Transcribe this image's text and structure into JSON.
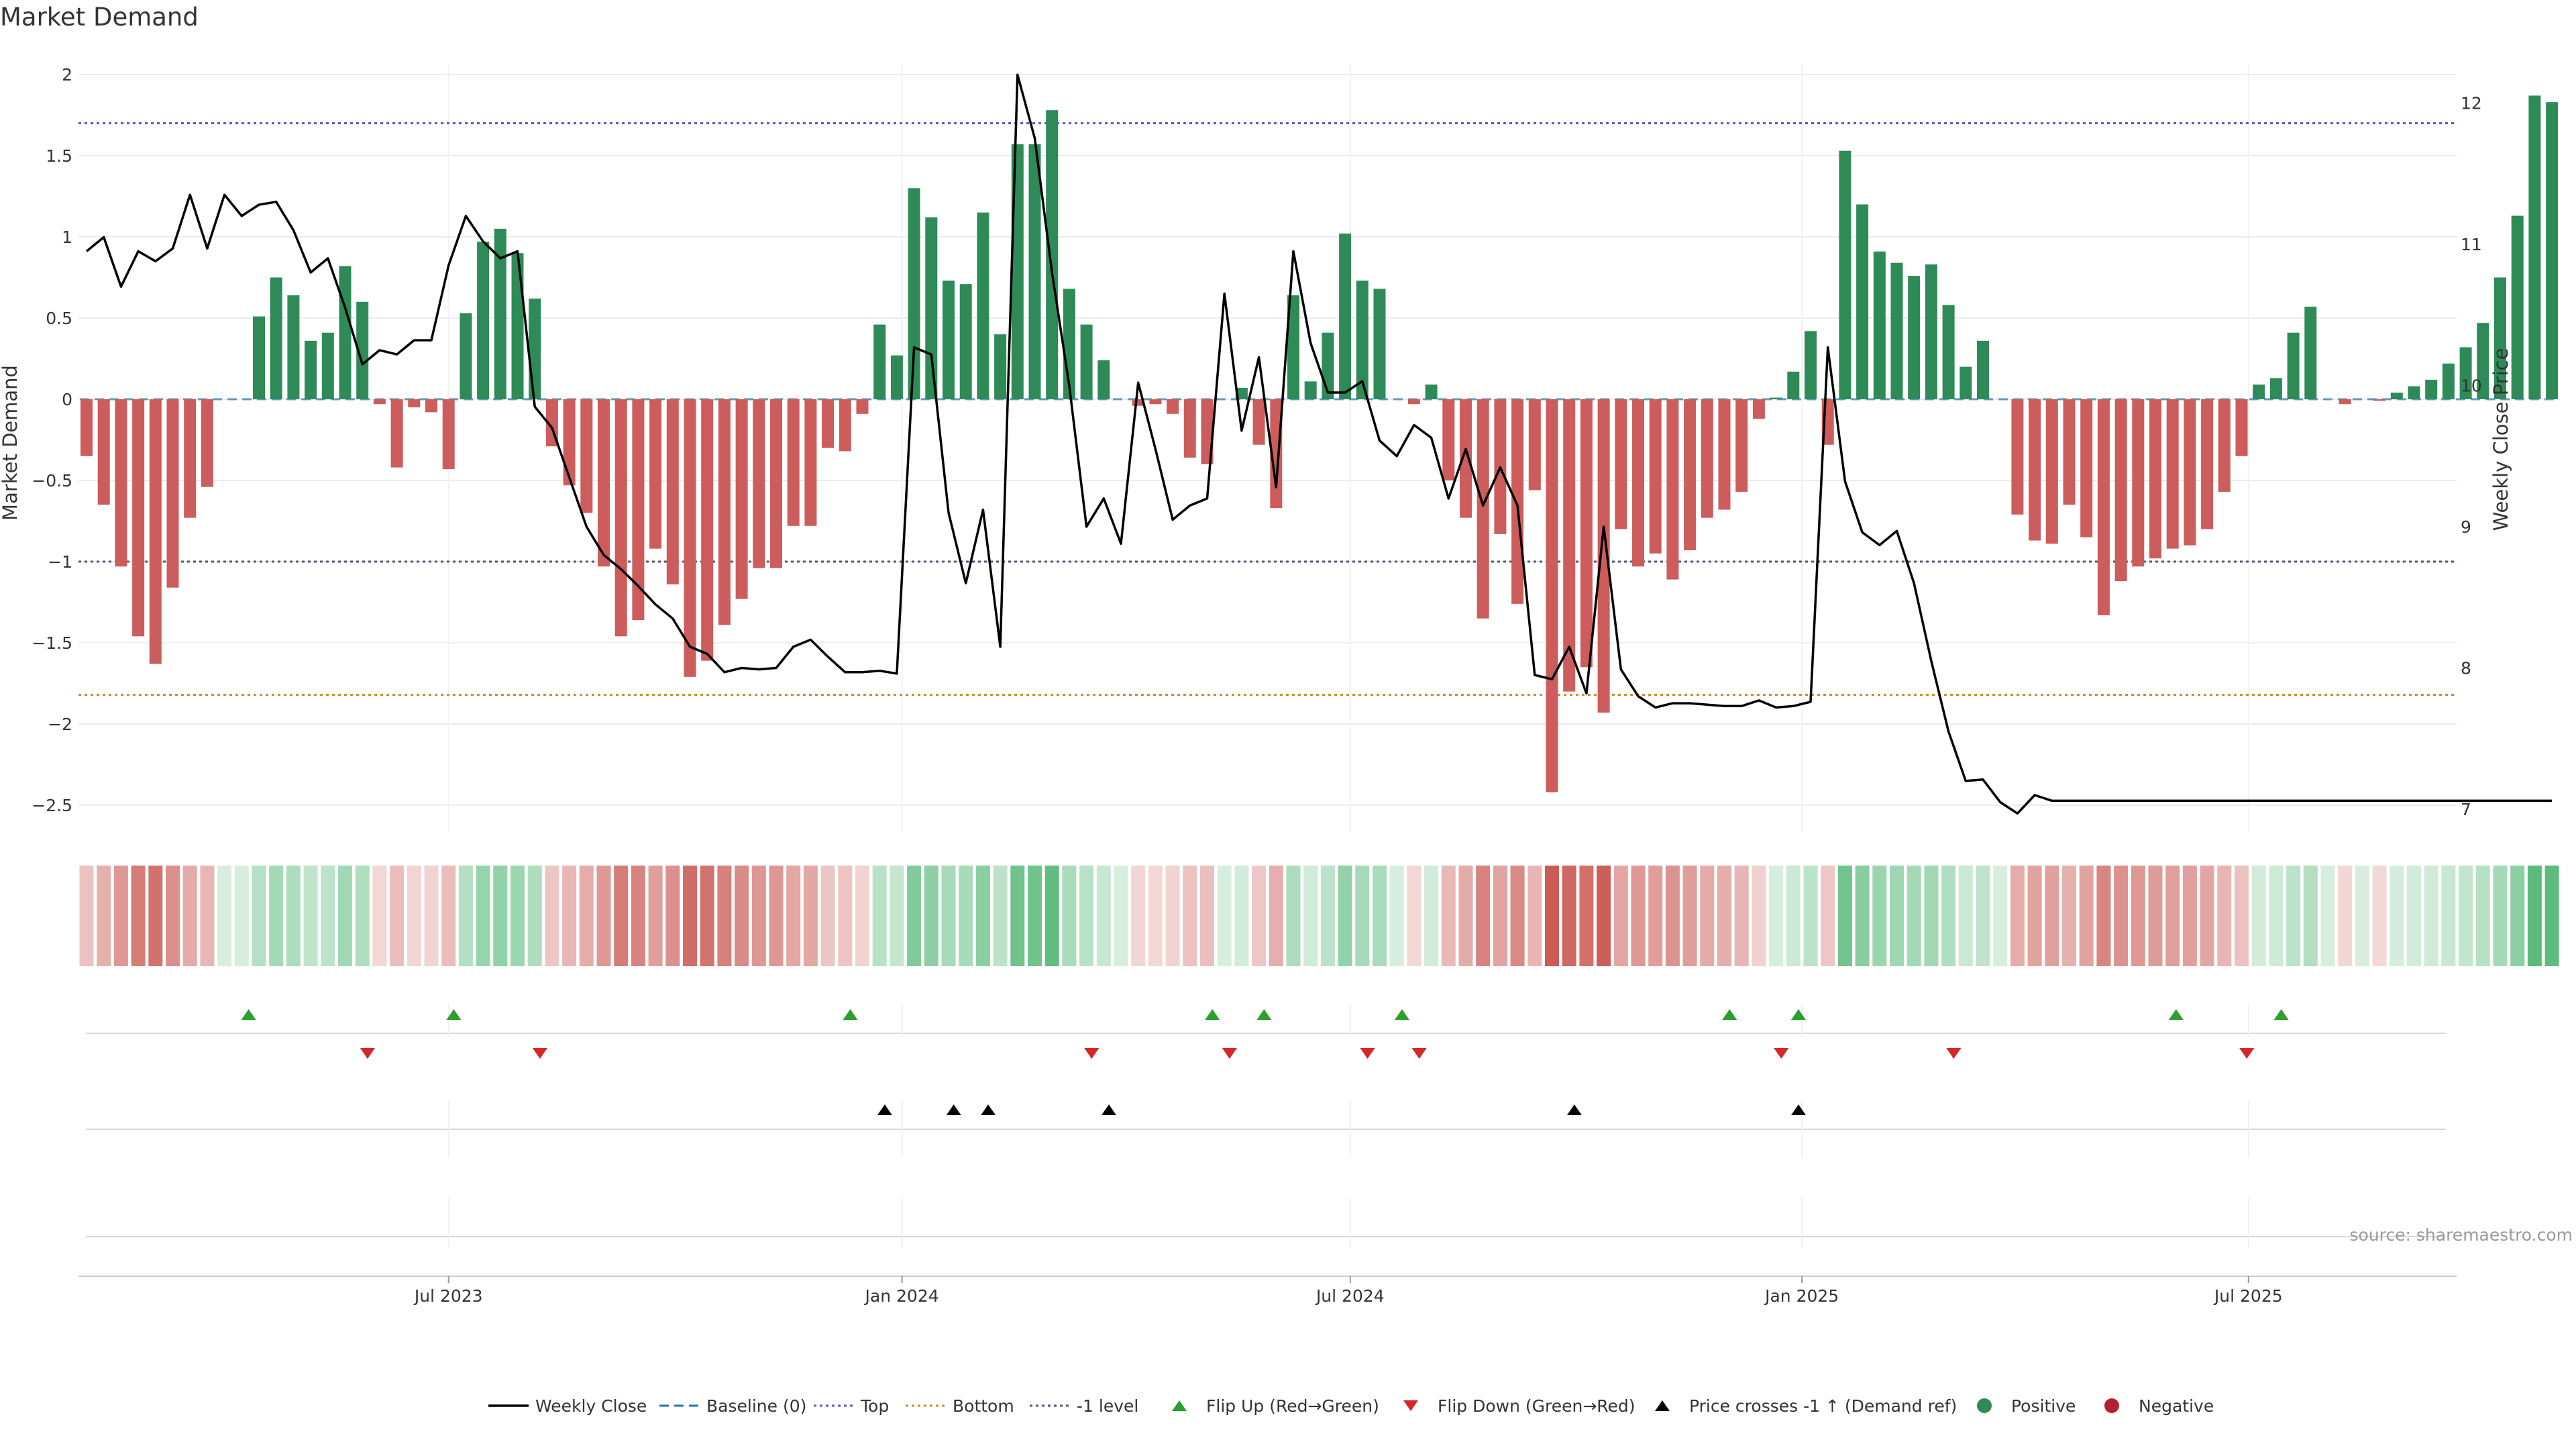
{
  "title": "Market Demand",
  "source": "source: sharemaestro.com",
  "colors": {
    "positive": "#2e8b57",
    "negative": "#cd5c5c",
    "price_line": "#000000",
    "top_line": "#5555cc",
    "bottom_line": "#d08a2a",
    "minus1_line": "#555577",
    "baseline": "#1f77b4",
    "flip_up": "#2ca02c",
    "flip_down": "#d62728",
    "cross": "#000000"
  },
  "legend": [
    {
      "label": "Weekly Close",
      "kind": "line",
      "color": "#000000"
    },
    {
      "label": "Baseline (0)",
      "kind": "dash",
      "color": "#1f77b4"
    },
    {
      "label": "Top",
      "kind": "dot",
      "color": "#5555cc"
    },
    {
      "label": "Bottom",
      "kind": "dot",
      "color": "#d08a2a"
    },
    {
      "label": "-1 level",
      "kind": "dot",
      "color": "#555577"
    },
    {
      "label": "Flip Up (Red→Green)",
      "kind": "tri-up",
      "color": "#2ca02c"
    },
    {
      "label": "Flip Down (Green→Red)",
      "kind": "tri-down",
      "color": "#d62728"
    },
    {
      "label": "Price crosses -1 ↑ (Demand ref)",
      "kind": "tri-up",
      "color": "#000000"
    },
    {
      "label": "Positive",
      "kind": "dot-circle",
      "color": "#2e8b57"
    },
    {
      "label": "Negative",
      "kind": "dot-circle",
      "color": "#b22233"
    }
  ],
  "chart_data": {
    "type": "bar",
    "title": "Market Demand",
    "ylabel": "Market Demand",
    "y2label": "Weekly Close Price",
    "ylim": [
      -2.6,
      2.05
    ],
    "y2lim": [
      6.95,
      12.25
    ],
    "yticks": [
      "2",
      "1.5",
      "1",
      "0.5",
      "0",
      "−0.5",
      "−1",
      "−1.5",
      "−2",
      "−2.5"
    ],
    "yticks_values": [
      2,
      1.5,
      1,
      0.5,
      0,
      -0.5,
      -1,
      -1.5,
      -2,
      -2.5
    ],
    "y2ticks": [
      "12",
      "11",
      "10",
      "9",
      "8",
      "7"
    ],
    "y2ticks_values": [
      12,
      11,
      10,
      9,
      8,
      7
    ],
    "xticks": [
      "Jul 2023",
      "Jan 2024",
      "Jul 2024",
      "Jan 2025",
      "Jul 2025"
    ],
    "xticks_index": [
      21,
      47.3,
      73.3,
      99.5,
      125.4
    ],
    "reference_lines": {
      "top": 1.7,
      "bottom": -1.82,
      "minus1": -1,
      "baseline": 0
    },
    "demand": [
      -0.35,
      -0.65,
      -1.03,
      -1.46,
      -1.63,
      -1.16,
      -0.73,
      -0.54,
      0,
      0,
      0.51,
      0.75,
      0.64,
      0.36,
      0.41,
      0.82,
      0.6,
      -0.03,
      -0.42,
      -0.05,
      -0.08,
      -0.43,
      0.53,
      0.97,
      1.05,
      0.9,
      0.62,
      -0.29,
      -0.53,
      -0.7,
      -1.03,
      -1.46,
      -1.36,
      -0.92,
      -1.14,
      -1.71,
      -1.61,
      -1.39,
      -1.23,
      -1.04,
      -1.04,
      -0.78,
      -0.78,
      -0.3,
      -0.32,
      -0.09,
      0.46,
      0.27,
      1.3,
      1.12,
      0.73,
      0.71,
      1.15,
      0.4,
      1.57,
      1.57,
      1.78,
      0.68,
      0.46,
      0.24,
      0,
      -0.04,
      -0.03,
      -0.09,
      -0.36,
      -0.4,
      0,
      0.07,
      -0.28,
      -0.67,
      0.64,
      0.11,
      0.41,
      1.02,
      0.73,
      0.68,
      0,
      -0.03,
      0.09,
      -0.5,
      -0.73,
      -1.35,
      -0.83,
      -1.26,
      -0.56,
      -2.42,
      -1.8,
      -1.65,
      -1.93,
      -0.8,
      -1.03,
      -0.95,
      -1.11,
      -0.93,
      -0.73,
      -0.68,
      -0.57,
      -0.12,
      0.01,
      0.17,
      0.42,
      -0.28,
      1.53,
      1.2,
      0.91,
      0.84,
      0.76,
      0.83,
      0.58,
      0.2,
      0.36,
      0,
      -0.71,
      -0.87,
      -0.89,
      -0.65,
      -0.85,
      -1.33,
      -1.12,
      -1.03,
      -0.98,
      -0.92,
      -0.9,
      -0.8,
      -0.57,
      -0.35,
      0.09,
      0.13,
      0.41,
      0.57,
      0,
      -0.03,
      0,
      -0.01,
      0.04,
      0.08,
      0.12,
      0.22,
      0.32,
      0.47,
      0.75,
      1.13,
      1.87,
      1.83
    ],
    "price": [
      10.95,
      11.05,
      10.7,
      10.95,
      10.88,
      10.97,
      11.35,
      10.97,
      11.35,
      11.2,
      11.28,
      11.3,
      11.1,
      10.8,
      10.9,
      10.55,
      10.15,
      10.25,
      10.22,
      10.32,
      10.32,
      10.85,
      11.2,
      11.02,
      10.9,
      10.95,
      9.85,
      9.7,
      9.35,
      9.0,
      8.8,
      8.7,
      8.58,
      8.45,
      8.35,
      8.15,
      8.1,
      7.97,
      8.0,
      7.99,
      8.0,
      8.15,
      8.2,
      8.08,
      7.97,
      7.97,
      7.98,
      7.96,
      10.27,
      10.22,
      9.1,
      8.6,
      9.12,
      8.15,
      12.2,
      11.75,
      10.8,
      10.0,
      9.0,
      9.2,
      8.88,
      10.02,
      9.55,
      9.05,
      9.15,
      9.2,
      10.65,
      9.68,
      10.2,
      9.28,
      10.95,
      10.3,
      9.95,
      9.95,
      10.03,
      9.61,
      9.5,
      9.72,
      9.63,
      9.2,
      9.55,
      9.15,
      9.42,
      9.15,
      7.95,
      7.92,
      8.15,
      7.82,
      9.0,
      7.99,
      7.8,
      7.72,
      7.75,
      7.75,
      7.74,
      7.73,
      7.73,
      7.77,
      7.72,
      7.73,
      7.76,
      10.27,
      9.32,
      8.96,
      8.87,
      8.97,
      8.6,
      8.05,
      7.55,
      7.2,
      7.21,
      7.05,
      6.97,
      7.1,
      7.06,
      7.06,
      7.06,
      7.06,
      7.06,
      7.06,
      7.06,
      7.06,
      7.06,
      7.06,
      7.06,
      7.06,
      7.06,
      7.06,
      7.06,
      7.06,
      7.06,
      7.06,
      7.06,
      7.06,
      7.06,
      7.06,
      7.06,
      7.06,
      7.06,
      7.06,
      7.06,
      7.06,
      7.06,
      7.06
    ],
    "flip_up_index": [
      9.4,
      21.3,
      44.3,
      65.3,
      68.3,
      76.3,
      95.3,
      99.3,
      121.2,
      127.3
    ],
    "flip_down_index": [
      16.3,
      26.3,
      58.3,
      66.3,
      74.3,
      77.3,
      98.3,
      108.3,
      125.3
    ],
    "price_cross_index": [
      46.3,
      50.3,
      52.3,
      59.3,
      86.3,
      99.3
    ]
  }
}
